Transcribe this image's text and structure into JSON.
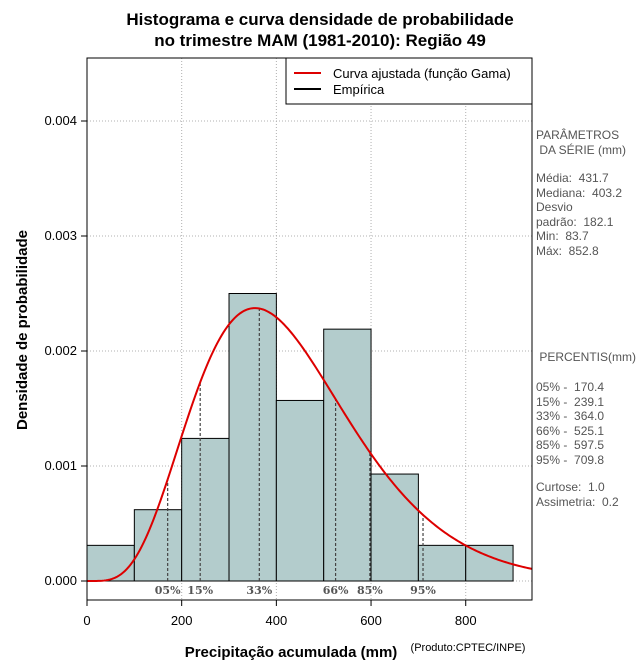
{
  "chart_data": {
    "type": "bar",
    "title_line1": "Histograma e curva densidade de probabilidade",
    "title_line2": "no trimestre MAM (1981-2010): Região 49",
    "xlabel": "Precipitação acumulada (mm)",
    "ylabel": "Densidade de probabilidade",
    "credit": "(Produto:CPTEC/INPE)",
    "xlim": [
      0,
      940
    ],
    "ylim": [
      0,
      0.0045
    ],
    "x_ticks": [
      0,
      200,
      400,
      600,
      800
    ],
    "y_ticks": [
      0.0,
      0.001,
      0.002,
      0.003,
      0.004
    ],
    "x_tick_labels": [
      "0",
      "200",
      "400",
      "600",
      "800"
    ],
    "y_tick_labels": [
      "0.000",
      "0.001",
      "0.002",
      "0.003",
      "0.004"
    ],
    "bins": [
      {
        "from": 0,
        "to": 100,
        "density": 0.00031
      },
      {
        "from": 100,
        "to": 200,
        "density": 0.00062
      },
      {
        "from": 200,
        "to": 300,
        "density": 0.00124
      },
      {
        "from": 300,
        "to": 400,
        "density": 0.0025
      },
      {
        "from": 400,
        "to": 500,
        "density": 0.00157
      },
      {
        "from": 500,
        "to": 600,
        "density": 0.00219
      },
      {
        "from": 600,
        "to": 700,
        "density": 0.00093
      },
      {
        "from": 700,
        "to": 800,
        "density": 0.00031
      },
      {
        "from": 800,
        "to": 900,
        "density": 0.00031
      }
    ],
    "gamma_curve": {
      "name": "Curva ajustada (função Gama)",
      "mean": 431.7,
      "sd": 182.1,
      "color": "#dd0000"
    },
    "empirical": {
      "name": "Empírica",
      "color": "#000000"
    },
    "percentiles": [
      {
        "label": "05%",
        "value": 170.4
      },
      {
        "label": "15%",
        "value": 239.1
      },
      {
        "label": "33%",
        "value": 364.0
      },
      {
        "label": "66%",
        "value": 525.1
      },
      {
        "label": "85%",
        "value": 597.5
      },
      {
        "label": "95%",
        "value": 709.8
      }
    ],
    "bar_color": "#b3cccc"
  },
  "stats_panel": {
    "header1": "PARÂMETROS",
    "header2": " DA SÉRIE (mm)",
    "lines": [
      "Média:  431.7",
      "Mediana:  403.2",
      "Desvio",
      "padrão:  182.1",
      "Min:  83.7",
      "Máx:  852.8"
    ]
  },
  "percentile_panel": {
    "header": " PERCENTIS(mm)",
    "lines": [
      "05% -  170.4",
      "15% -  239.1",
      "33% -  364.0",
      "66% -  525.1",
      "85% -  597.5",
      "95% -  709.8"
    ],
    "extra": [
      "Curtose:  1.0",
      "Assimetria:  0.2"
    ]
  }
}
